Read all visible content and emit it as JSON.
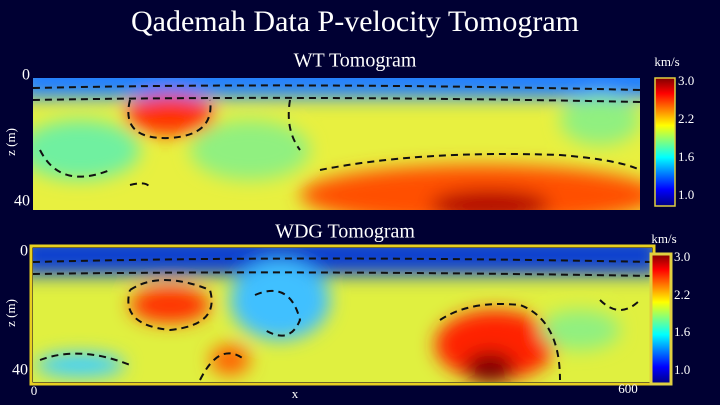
{
  "title": "Qademah Data P-velocity Tomogram",
  "panels": [
    {
      "title": "WT Tomogram",
      "y_label": "z (m)",
      "y_ticks": [
        "0",
        "40"
      ],
      "colorbar": {
        "unit": "km/s",
        "ticks": [
          "3.0",
          "2.2",
          "1.6",
          "1.0"
        ]
      }
    },
    {
      "title": "WDG Tomogram",
      "y_label": "z (m)",
      "y_ticks": [
        "0",
        "40"
      ],
      "x_ticks": [
        "0",
        "x",
        "600"
      ],
      "colorbar": {
        "unit": "km/s",
        "ticks": [
          "3.0",
          "2.2",
          "1.6",
          "1.0"
        ]
      }
    }
  ]
}
